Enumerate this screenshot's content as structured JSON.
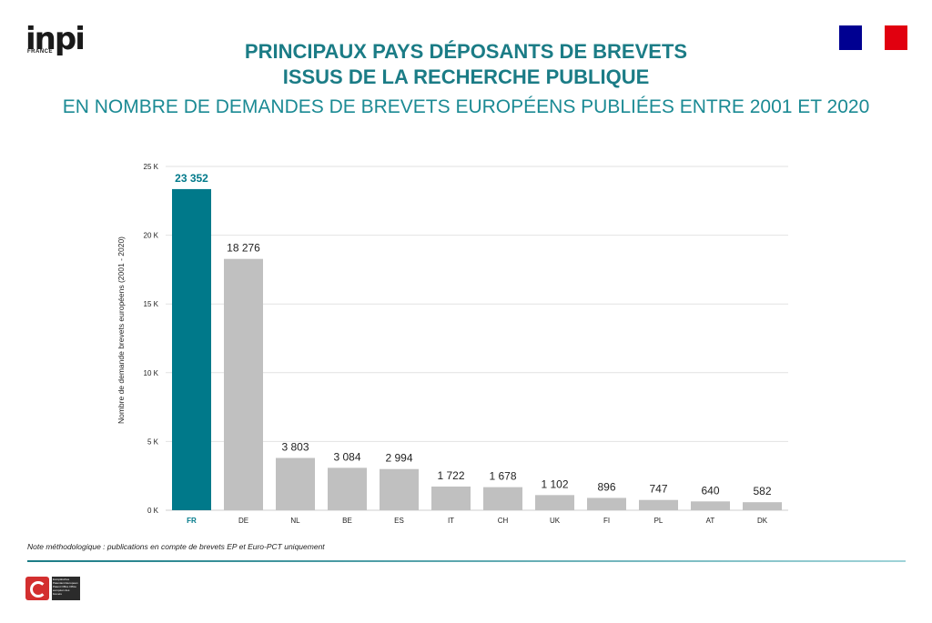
{
  "header": {
    "logo_text": "inpi",
    "logo_sub": "FRANCE",
    "title_line1": "PRINCIPAUX PAYS DÉPOSANTS DE BREVETS",
    "title_line2": "ISSUS DE LA RECHERCHE PUBLIQUE",
    "subtitle": "EN NOMBRE DE DEMANDES DE BREVETS EUROPÉENS PUBLIÉES ENTRE 2001 ET 2020"
  },
  "colors": {
    "highlight": "#00798a",
    "bar": "#c0c0c0",
    "title": "#1b7c86",
    "grid": "#e2e2e2"
  },
  "chart_data": {
    "type": "bar",
    "title": "PRINCIPAUX PAYS DÉPOSANTS DE BREVETS ISSUS DE LA RECHERCHE PUBLIQUE",
    "xlabel": "",
    "ylabel": "Nombre de demande brevets européens (2001 - 2020)",
    "categories": [
      "FR",
      "DE",
      "NL",
      "BE",
      "ES",
      "IT",
      "CH",
      "UK",
      "FI",
      "PL",
      "AT",
      "DK"
    ],
    "values": [
      23352,
      18276,
      3803,
      3084,
      2994,
      1722,
      1678,
      1102,
      896,
      747,
      640,
      582
    ],
    "value_labels": [
      "23 352",
      "18 276",
      "3 803",
      "3 084",
      "2 994",
      "1 722",
      "1 678",
      "1 102",
      "896",
      "747",
      "640",
      "582"
    ],
    "yticks": [
      0,
      5000,
      10000,
      15000,
      20000,
      25000
    ],
    "ytick_labels": [
      "0 K",
      "5 K",
      "10 K",
      "15 K",
      "20 K",
      "25 K"
    ],
    "ylim": [
      0,
      25500
    ],
    "grid": true,
    "highlight_category": "FR"
  },
  "footer": {
    "note": "Note méthodologique : publications en compte de brevets EP et Euro-PCT uniquement",
    "epo_text": "Europäisches Patentamt European Patent Office Office européen des brevets"
  }
}
